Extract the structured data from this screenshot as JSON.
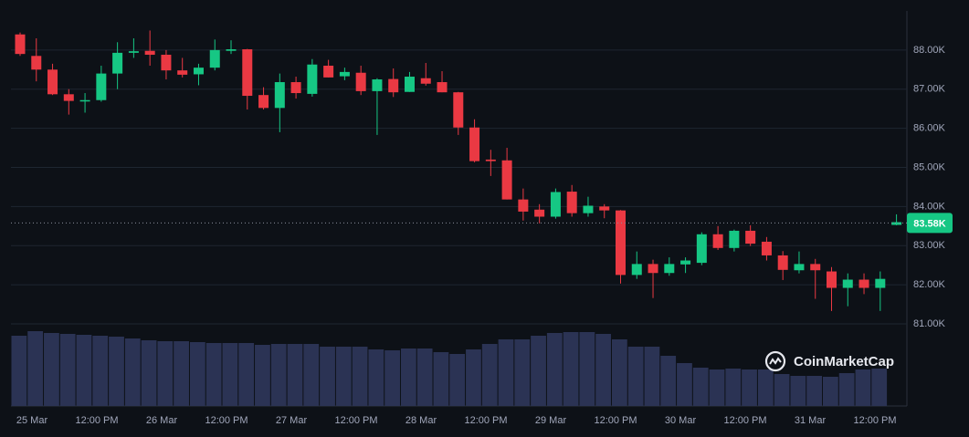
{
  "chart_data": {
    "type": "candlestick",
    "brand": "CoinMarketCap",
    "x_labels": [
      "25 Mar",
      "12:00 PM",
      "26 Mar",
      "12:00 PM",
      "27 Mar",
      "12:00 PM",
      "28 Mar",
      "12:00 PM",
      "29 Mar",
      "12:00 PM",
      "30 Mar",
      "12:00 PM",
      "31 Mar",
      "12:00 PM"
    ],
    "open": [
      88400,
      87850,
      87500,
      86870,
      86700,
      86720,
      87400,
      87930,
      87980,
      87880,
      87480,
      87380,
      87550,
      87980,
      88020,
      86850,
      86520,
      87180,
      86880,
      87600,
      87330,
      87420,
      86950,
      87260,
      86930,
      87280,
      87180,
      86920,
      86020,
      85200,
      85180,
      84180,
      83920,
      83740,
      84380,
      83830,
      84000,
      83900,
      82250,
      82530,
      82300,
      82520,
      82560,
      83290,
      82940,
      83380,
      83100,
      82750,
      82370,
      82530,
      82340,
      81920,
      82130,
      81920,
      83530
    ],
    "high": [
      88450,
      88300,
      87650,
      87000,
      86900,
      87600,
      88200,
      88300,
      88500,
      88000,
      87800,
      87650,
      88270,
      88250,
      88030,
      87050,
      87400,
      87320,
      87770,
      87750,
      87550,
      87600,
      87280,
      87530,
      87440,
      87670,
      87460,
      86930,
      86230,
      85450,
      85500,
      84460,
      84060,
      84460,
      84550,
      84250,
      84060,
      83910,
      82850,
      82640,
      82700,
      82700,
      83340,
      83500,
      83410,
      83520,
      83220,
      82860,
      82850,
      82660,
      82450,
      82290,
      82290,
      82340,
      83800
    ],
    "low": [
      87850,
      87200,
      86850,
      86350,
      86400,
      86680,
      87000,
      87800,
      87600,
      87250,
      87300,
      87100,
      87480,
      87900,
      86480,
      86480,
      85900,
      86760,
      86810,
      87300,
      87230,
      86850,
      85830,
      86800,
      86930,
      87090,
      86920,
      85830,
      85130,
      84780,
      84180,
      83640,
      83570,
      83690,
      83740,
      83740,
      83700,
      82030,
      82150,
      81660,
      82230,
      82300,
      82500,
      82890,
      82850,
      82990,
      82620,
      82120,
      82290,
      81640,
      81330,
      81450,
      81760,
      81330,
      83520
    ],
    "close": [
      87900,
      87500,
      86870,
      86700,
      86720,
      87400,
      87930,
      87970,
      87880,
      87480,
      87370,
      87550,
      88000,
      88020,
      86830,
      86520,
      87180,
      86900,
      87630,
      87300,
      87440,
      86950,
      87250,
      86920,
      87320,
      87140,
      86920,
      86020,
      85160,
      85160,
      84180,
      83870,
      83740,
      84370,
      83830,
      84020,
      83900,
      82250,
      82530,
      82300,
      82530,
      82620,
      83290,
      82940,
      83380,
      83050,
      82750,
      82380,
      82530,
      82370,
      81920,
      82130,
      81920,
      82150,
      83600
    ],
    "volume": [
      77,
      82,
      80,
      79,
      78,
      77,
      76,
      74,
      72,
      71,
      71,
      70,
      69,
      69,
      69,
      67,
      68,
      68,
      68,
      65,
      65,
      65,
      62,
      61,
      63,
      63,
      59,
      57,
      62,
      68,
      73,
      73,
      77,
      80,
      81,
      81,
      79,
      73,
      65,
      65,
      55,
      47,
      42,
      40,
      41,
      40,
      40,
      35,
      33,
      33,
      32,
      36,
      40,
      41,
      null
    ],
    "up_color": "#16c784",
    "down_color": "#ea3943",
    "volume_color": "#2b3354",
    "ylim": [
      78900,
      89000
    ],
    "yticks": [
      {
        "value": 81000,
        "label": "81.00K"
      },
      {
        "value": 82000,
        "label": "82.00K"
      },
      {
        "value": 83000,
        "label": "83.00K"
      },
      {
        "value": 84000,
        "label": "84.00K"
      },
      {
        "value": 85000,
        "label": "85.00K"
      },
      {
        "value": 86000,
        "label": "86.00K"
      },
      {
        "value": 87000,
        "label": "87.00K"
      },
      {
        "value": 88000,
        "label": "88.00K"
      }
    ],
    "grid": true,
    "current_price": {
      "value": 83580,
      "label": "83.58K"
    }
  }
}
